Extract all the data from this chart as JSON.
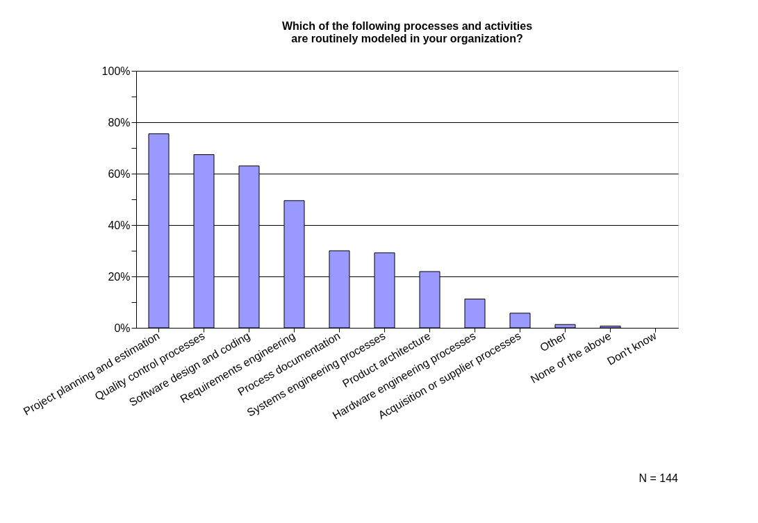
{
  "chart_data": {
    "type": "bar",
    "title": [
      "Which of the following processes and activities",
      "are routinely modeled in your organization?"
    ],
    "categories": [
      "Project planning and estimation",
      "Quality control processes",
      "Software design and coding",
      "Requirements engineering",
      "Process documentation",
      "Systems engineering processes",
      "Product architecture",
      "Hardware engineering processes",
      "Acquisition or supplier processes",
      "Other",
      "None of the above",
      "Don't know"
    ],
    "values": [
      75.5,
      67.4,
      63,
      49.5,
      30,
      29.2,
      21.9,
      11.2,
      5.7,
      1.3,
      0.7,
      0
    ],
    "color": "#9999ff",
    "ylim": [
      0,
      100
    ],
    "yticks": [
      {
        "value": 0,
        "label": "0%"
      },
      {
        "value": 10,
        "label": null
      },
      {
        "value": 20,
        "label": "20%"
      },
      {
        "value": 30,
        "label": null
      },
      {
        "value": 40,
        "label": "40%"
      },
      {
        "value": 50,
        "label": null
      },
      {
        "value": 60,
        "label": "60%"
      },
      {
        "value": 70,
        "label": null
      },
      {
        "value": 80,
        "label": "80%"
      },
      {
        "value": 90,
        "label": null
      },
      {
        "value": 100,
        "label": "100%"
      }
    ],
    "grid": "y",
    "annotations": [
      "N = 144"
    ]
  }
}
